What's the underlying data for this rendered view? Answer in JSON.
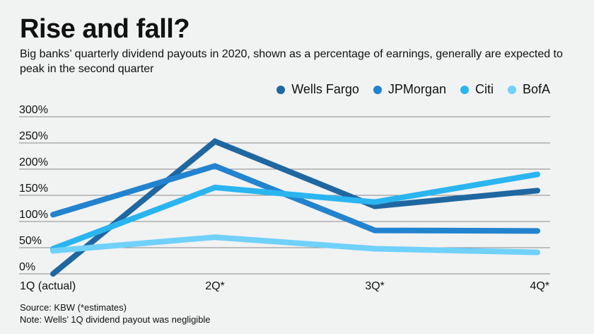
{
  "chart_data": {
    "type": "line",
    "title": "Rise and fall?",
    "subtitle": "Big banks’ quarterly dividend payouts in 2020, shown as a percentage of earnings, generally are expected to peak in the second quarter",
    "xlabel": "",
    "ylabel": "",
    "categories": [
      "1Q (actual)",
      "2Q*",
      "3Q*",
      "4Q*"
    ],
    "yticks": [
      "0%",
      "50%",
      "100%",
      "150%",
      "200%",
      "250%",
      "300%"
    ],
    "ylim": [
      0,
      300
    ],
    "grid": true,
    "legend_position": "top-right",
    "series": [
      {
        "name": "Wells Fargo",
        "color": "#1f67a0",
        "values": [
          0,
          253,
          129,
          159
        ]
      },
      {
        "name": "JPMorgan",
        "color": "#2283cf",
        "values": [
          113,
          206,
          83,
          82
        ]
      },
      {
        "name": "Citi",
        "color": "#2ab5f0",
        "values": [
          48,
          165,
          137,
          190
        ]
      },
      {
        "name": "BofA",
        "color": "#70d1fb",
        "values": [
          44,
          70,
          48,
          41
        ]
      }
    ]
  },
  "footer": {
    "source": "Source: KBW (*estimates)",
    "note": "Note: Wells’ 1Q dividend payout was negligible"
  }
}
